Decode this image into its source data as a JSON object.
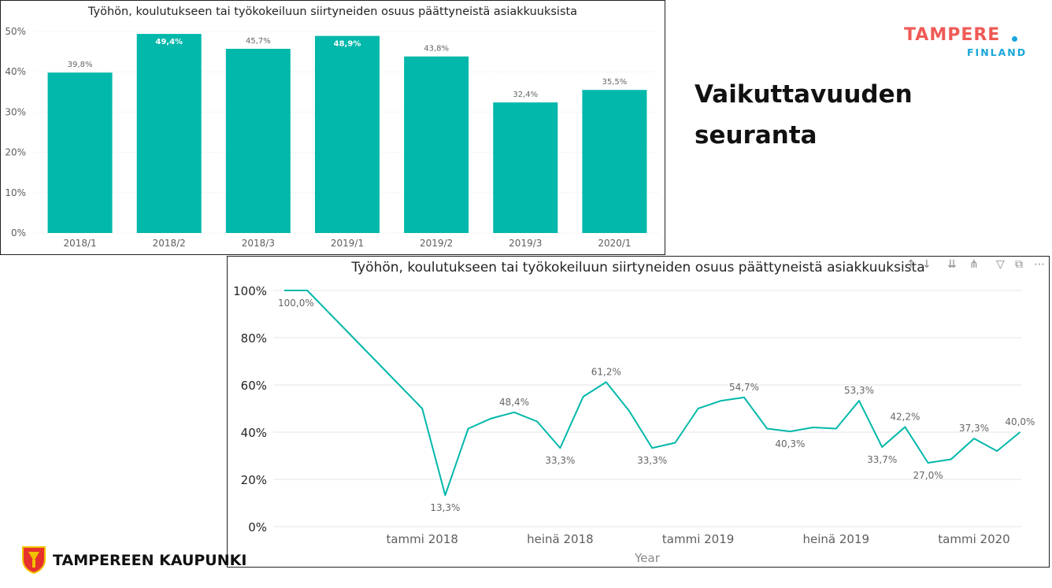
{
  "heading_line1": "Vaikuttavuuden",
  "heading_line2": "seuranta",
  "brand_right": {
    "word": "TAMPERE",
    "sub": "FINLAND"
  },
  "brand_left": {
    "text": "TAMPEREEN KAUPUNKI"
  },
  "toolbar_icons": [
    "sort-up-icon",
    "sort-down-icon",
    "expand-all-icon",
    "drill-down-icon",
    "filter-icon",
    "focus-mode-icon",
    "more-options-icon"
  ],
  "colors": {
    "series": "#01b8aa",
    "grid": "#e6e6e6",
    "axis_text": "#605e5c",
    "label_text": "#666666"
  },
  "chart_data": [
    {
      "type": "bar",
      "title": "Työhön, koulutukseen tai työkokeiluun siirtyneiden osuus päättyneistä asiakkuuksista",
      "categories": [
        "2018/1",
        "2018/2",
        "2018/3",
        "2019/1",
        "2019/2",
        "2019/3",
        "2020/1"
      ],
      "values": [
        39.8,
        49.4,
        45.7,
        48.9,
        43.8,
        32.4,
        35.5
      ],
      "data_labels": [
        "39,8%",
        "49,4%",
        "45,7%",
        "48,9%",
        "43,8%",
        "32,4%",
        "35,5%"
      ],
      "inside_labels": [
        false,
        true,
        false,
        true,
        false,
        false,
        false
      ],
      "yticks": [
        "0%",
        "10%",
        "20%",
        "30%",
        "40%",
        "50%"
      ],
      "ylim": [
        0,
        50
      ],
      "grid": true
    },
    {
      "type": "line",
      "title": "Työhön, koulutukseen tai työkokeiluun siirtyneiden osuus päättyneistä asiakkuuksista",
      "xlabel": "Year",
      "x": [
        "2017-07",
        "2017-08",
        "2017-09",
        "2017-10",
        "2017-11",
        "2017-12",
        "2018-01",
        "2018-02",
        "2018-03",
        "2018-04",
        "2018-05",
        "2018-06",
        "2018-07",
        "2018-08",
        "2018-09",
        "2018-10",
        "2018-11",
        "2018-12",
        "2019-01",
        "2019-02",
        "2019-03",
        "2019-04",
        "2019-05",
        "2019-06",
        "2019-07",
        "2019-08",
        "2019-09",
        "2019-10",
        "2019-11",
        "2019-12",
        "2020-01",
        "2020-02",
        "2020-03"
      ],
      "values": [
        100.0,
        100.0,
        90.0,
        80.0,
        70.0,
        60.0,
        50.0,
        13.3,
        41.5,
        45.8,
        48.4,
        44.5,
        33.3,
        55.0,
        61.2,
        49.0,
        33.3,
        35.5,
        50.0,
        53.3,
        54.7,
        41.5,
        40.3,
        42.0,
        41.5,
        53.3,
        33.7,
        42.2,
        27.0,
        28.5,
        37.3,
        32.0,
        40.0
      ],
      "point_labels": [
        {
          "i": 0,
          "text": "100,0%",
          "pos": "below"
        },
        {
          "i": 7,
          "text": "13,3%",
          "pos": "below"
        },
        {
          "i": 10,
          "text": "48,4%",
          "pos": "above"
        },
        {
          "i": 12,
          "text": "33,3%",
          "pos": "below"
        },
        {
          "i": 14,
          "text": "61,2%",
          "pos": "above"
        },
        {
          "i": 16,
          "text": "33,3%",
          "pos": "below"
        },
        {
          "i": 20,
          "text": "54,7%",
          "pos": "above"
        },
        {
          "i": 22,
          "text": "40,3%",
          "pos": "below"
        },
        {
          "i": 25,
          "text": "53,3%",
          "pos": "above"
        },
        {
          "i": 26,
          "text": "33,7%",
          "pos": "below"
        },
        {
          "i": 27,
          "text": "42,2%",
          "pos": "above"
        },
        {
          "i": 28,
          "text": "27,0%",
          "pos": "below"
        },
        {
          "i": 30,
          "text": "37,3%",
          "pos": "above"
        },
        {
          "i": 32,
          "text": "40,0%",
          "pos": "above"
        }
      ],
      "xticks": [
        {
          "i": 6,
          "text": "tammi 2018"
        },
        {
          "i": 12,
          "text": "heinä 2018"
        },
        {
          "i": 18,
          "text": "tammi 2019"
        },
        {
          "i": 24,
          "text": "heinä 2019"
        },
        {
          "i": 30,
          "text": "tammi 2020"
        }
      ],
      "yticks": [
        "0%",
        "20%",
        "40%",
        "60%",
        "80%",
        "100%"
      ],
      "ylim": [
        0,
        100
      ],
      "grid": true
    }
  ]
}
